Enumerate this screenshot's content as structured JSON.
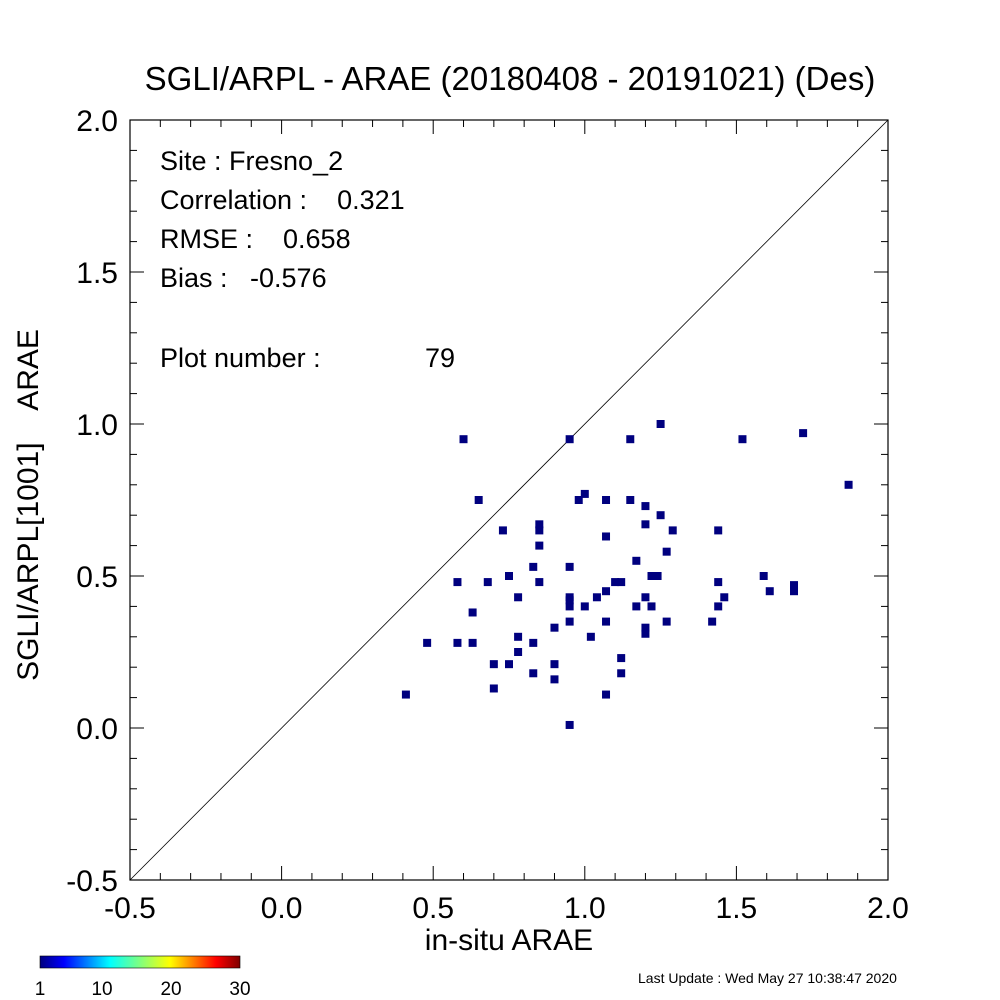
{
  "chart_data": {
    "type": "scatter",
    "title": "SGLI/ARPL - ARAE (20180408 - 20191021) (Des)",
    "xlabel": "in-situ ARAE",
    "ylabel": "SGLI/ARPL[1001]    ARAE",
    "xlim": [
      -0.5,
      2.0
    ],
    "ylim": [
      -0.5,
      2.0
    ],
    "x_ticks": [
      -0.5,
      0.0,
      0.5,
      1.0,
      1.5,
      2.0
    ],
    "y_ticks": [
      -0.5,
      0.0,
      0.5,
      1.0,
      1.5,
      2.0
    ],
    "x_tick_labels": [
      "-0.5",
      "0.0",
      "0.5",
      "1.0",
      "1.5",
      "2.0"
    ],
    "y_tick_labels": [
      "-0.5",
      "0.0",
      "0.5",
      "1.0",
      "1.5",
      "2.0"
    ],
    "reference_line": "1:1",
    "grid": false,
    "marker_color": "#00007f",
    "stats": {
      "site": "Site : Fresno_2",
      "correlation": "Correlation :    0.321",
      "rmse": "RMSE :    0.658",
      "bias": "Bias :   -0.576",
      "plot_number_label": "Plot number :",
      "plot_number_value": "79"
    },
    "points": [
      [
        0.41,
        0.11
      ],
      [
        0.48,
        0.28
      ],
      [
        0.58,
        0.28
      ],
      [
        0.58,
        0.48
      ],
      [
        0.6,
        0.95
      ],
      [
        0.63,
        0.28
      ],
      [
        0.63,
        0.38
      ],
      [
        0.65,
        0.75
      ],
      [
        0.68,
        0.48
      ],
      [
        0.7,
        0.13
      ],
      [
        0.7,
        0.21
      ],
      [
        0.73,
        0.65
      ],
      [
        0.75,
        0.21
      ],
      [
        0.75,
        0.5
      ],
      [
        0.78,
        0.25
      ],
      [
        0.78,
        0.3
      ],
      [
        0.78,
        0.43
      ],
      [
        0.83,
        0.18
      ],
      [
        0.83,
        0.28
      ],
      [
        0.83,
        0.53
      ],
      [
        0.85,
        0.48
      ],
      [
        0.85,
        0.6
      ],
      [
        0.85,
        0.65
      ],
      [
        0.85,
        0.67
      ],
      [
        0.9,
        0.16
      ],
      [
        0.9,
        0.21
      ],
      [
        0.9,
        0.33
      ],
      [
        0.95,
        0.01
      ],
      [
        0.95,
        0.35
      ],
      [
        0.95,
        0.4
      ],
      [
        0.95,
        0.42
      ],
      [
        0.95,
        0.43
      ],
      [
        0.95,
        0.53
      ],
      [
        0.95,
        0.95
      ],
      [
        0.98,
        0.75
      ],
      [
        1.0,
        0.4
      ],
      [
        1.0,
        0.77
      ],
      [
        1.02,
        0.3
      ],
      [
        1.04,
        0.43
      ],
      [
        1.07,
        0.11
      ],
      [
        1.07,
        0.35
      ],
      [
        1.07,
        0.45
      ],
      [
        1.07,
        0.63
      ],
      [
        1.07,
        0.75
      ],
      [
        1.1,
        0.48
      ],
      [
        1.12,
        0.18
      ],
      [
        1.12,
        0.23
      ],
      [
        1.12,
        0.48
      ],
      [
        1.15,
        0.75
      ],
      [
        1.15,
        0.95
      ],
      [
        1.17,
        0.4
      ],
      [
        1.17,
        0.55
      ],
      [
        1.2,
        0.31
      ],
      [
        1.2,
        0.33
      ],
      [
        1.2,
        0.43
      ],
      [
        1.2,
        0.67
      ],
      [
        1.2,
        0.73
      ],
      [
        1.22,
        0.4
      ],
      [
        1.22,
        0.5
      ],
      [
        1.24,
        0.5
      ],
      [
        1.25,
        0.7
      ],
      [
        1.25,
        1.0
      ],
      [
        1.27,
        0.35
      ],
      [
        1.27,
        0.58
      ],
      [
        1.29,
        0.65
      ],
      [
        1.42,
        0.35
      ],
      [
        1.44,
        0.4
      ],
      [
        1.44,
        0.48
      ],
      [
        1.44,
        0.65
      ],
      [
        1.46,
        0.43
      ],
      [
        1.52,
        0.95
      ],
      [
        1.59,
        0.5
      ],
      [
        1.61,
        0.45
      ],
      [
        1.69,
        0.45
      ],
      [
        1.69,
        0.47
      ],
      [
        1.72,
        0.97
      ],
      [
        1.87,
        0.8
      ]
    ],
    "colorbar": {
      "ticks": [
        1,
        10,
        20,
        30
      ],
      "tick_labels": [
        "1",
        "10",
        "20",
        "30"
      ],
      "colormap": "jet"
    }
  },
  "footer": {
    "last_update": "Last Update : Wed May 27 10:38:47 2020"
  }
}
